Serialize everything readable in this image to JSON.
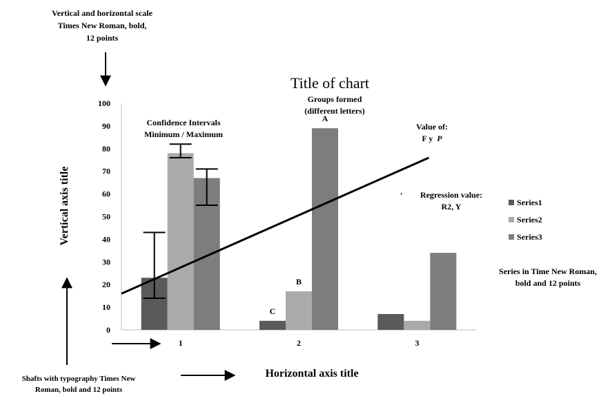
{
  "chart_data": {
    "type": "bar",
    "title": "Title of chart",
    "xlabel": "Horizontal axis title",
    "ylabel": "Vertical axis title",
    "categories": [
      "1",
      "2",
      "3"
    ],
    "ylim": [
      0,
      100
    ],
    "yticks": [
      0,
      10,
      20,
      30,
      40,
      50,
      60,
      70,
      80,
      90,
      100
    ],
    "grid": false,
    "legend_position": "right",
    "series": [
      {
        "name": "Series1",
        "color": "#5a5a5a",
        "values": [
          23,
          4,
          7
        ]
      },
      {
        "name": "Series2",
        "color": "#aaaaaa",
        "values": [
          78,
          17,
          4
        ]
      },
      {
        "name": "Series3",
        "color": "#7d7d7d",
        "values": [
          67,
          89,
          34
        ]
      }
    ],
    "error_bars": [
      {
        "category": "1",
        "series": "Series1",
        "min": 14,
        "max": 43
      },
      {
        "category": "1",
        "series": "Series2",
        "min": 76,
        "max": 82
      },
      {
        "category": "1",
        "series": "Series3",
        "min": 55,
        "max": 71
      }
    ],
    "group_letters": [
      {
        "category": "2",
        "series": "Series1",
        "letter": "C"
      },
      {
        "category": "2",
        "series": "Series2",
        "letter": "B"
      },
      {
        "category": "2",
        "series": "Series3",
        "letter": "A"
      }
    ],
    "trendline": {
      "x_start": 0.5,
      "y_start": 16,
      "x_end": 3.1,
      "y_end": 76
    }
  },
  "annotations": {
    "scale_note": [
      "Vertical and horizontal scale",
      "Times New Roman, bold,",
      "12 points"
    ],
    "ci_note": [
      "Confidence Intervals",
      "Minimum / Maximum"
    ],
    "groups_note": [
      "Groups formed",
      "(different letters)"
    ],
    "value_note": [
      "Value of:",
      "F y",
      "P"
    ],
    "regression_note": [
      "Regression value:",
      "R2, Y"
    ],
    "series_note": [
      "Series in Time New Roman,",
      "bold and 12 points"
    ],
    "shafts_note": [
      "Shafts with typography Times New",
      "Roman, bold and 12 points"
    ],
    "regression_dot": "’"
  },
  "colors": {
    "trendline": "#000000",
    "axis": "#bbbbbb"
  }
}
